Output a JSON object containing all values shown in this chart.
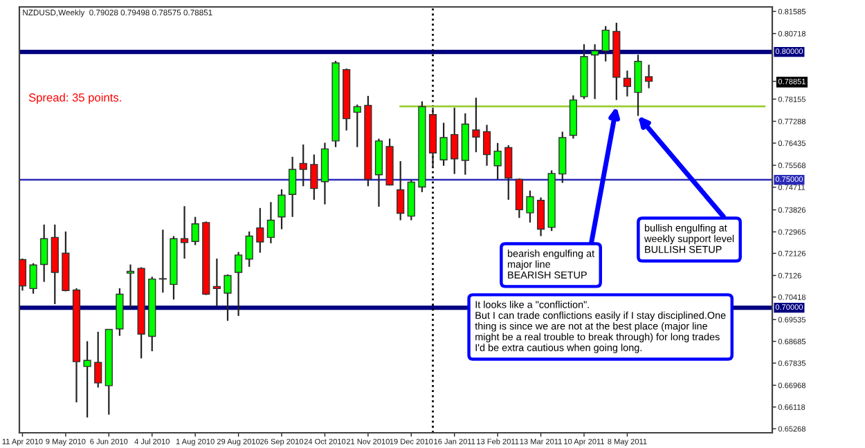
{
  "chart_data": {
    "type": "candlestick",
    "title": "NZDUSD,Weekly  0.79028 0.79498 0.78575 0.78851",
    "x": [
      "2010-04-11",
      "2010-04-18",
      "2010-04-25",
      "2010-05-02",
      "2010-05-09",
      "2010-05-16",
      "2010-05-23",
      "2010-05-30",
      "2010-06-06",
      "2010-06-13",
      "2010-06-20",
      "2010-06-27",
      "2010-07-04",
      "2010-07-11",
      "2010-07-18",
      "2010-07-25",
      "2010-08-01",
      "2010-08-08",
      "2010-08-15",
      "2010-08-22",
      "2010-08-29",
      "2010-09-05",
      "2010-09-12",
      "2010-09-19",
      "2010-09-26",
      "2010-10-03",
      "2010-10-10",
      "2010-10-17",
      "2010-10-24",
      "2010-10-31",
      "2010-11-07",
      "2010-11-14",
      "2010-11-21",
      "2010-11-28",
      "2010-12-05",
      "2010-12-12",
      "2010-12-19",
      "2010-12-26",
      "2011-01-02",
      "2011-01-09",
      "2011-01-16",
      "2011-01-23",
      "2011-01-30",
      "2011-02-06",
      "2011-02-13",
      "2011-02-20",
      "2011-02-27",
      "2011-03-06",
      "2011-03-13",
      "2011-03-20",
      "2011-03-27",
      "2011-04-03",
      "2011-04-10",
      "2011-04-17",
      "2011-04-24",
      "2011-05-01",
      "2011-05-08",
      "2011-05-15",
      "2011-05-22"
    ],
    "ohlc": [
      [
        0.7188,
        0.7192,
        0.7067,
        0.7085
      ],
      [
        0.7075,
        0.7174,
        0.7055,
        0.7167
      ],
      [
        0.7169,
        0.7325,
        0.7101,
        0.727
      ],
      [
        0.7275,
        0.7325,
        0.7014,
        0.7138
      ],
      [
        0.7213,
        0.7298,
        0.7064,
        0.7067
      ],
      [
        0.7069,
        0.7076,
        0.663,
        0.6789
      ],
      [
        0.677,
        0.6869,
        0.6571,
        0.6794
      ],
      [
        0.6786,
        0.6906,
        0.6688,
        0.6706
      ],
      [
        0.6695,
        0.6915,
        0.6582,
        0.6915
      ],
      [
        0.6917,
        0.7076,
        0.689,
        0.7053
      ],
      [
        0.7135,
        0.7169,
        0.6997,
        0.7142
      ],
      [
        0.7154,
        0.7158,
        0.6802,
        0.6897
      ],
      [
        0.6888,
        0.7121,
        0.683,
        0.7112
      ],
      [
        0.7112,
        0.7305,
        0.7059,
        0.7112
      ],
      [
        0.7091,
        0.728,
        0.7032,
        0.727
      ],
      [
        0.727,
        0.7397,
        0.7192,
        0.7255
      ],
      [
        0.7259,
        0.7355,
        0.7245,
        0.7328
      ],
      [
        0.7333,
        0.7337,
        0.705,
        0.7053
      ],
      [
        0.7083,
        0.7192,
        0.7005,
        0.7075
      ],
      [
        0.7057,
        0.713,
        0.6949,
        0.7126
      ],
      [
        0.7138,
        0.7218,
        0.6968,
        0.7206
      ],
      [
        0.719,
        0.7298,
        0.716,
        0.728
      ],
      [
        0.7312,
        0.739,
        0.7215,
        0.7257
      ],
      [
        0.7275,
        0.7413,
        0.7252,
        0.7342
      ],
      [
        0.7355,
        0.7463,
        0.7307,
        0.744
      ],
      [
        0.7443,
        0.759,
        0.7355,
        0.7541
      ],
      [
        0.7564,
        0.7638,
        0.7475,
        0.7541
      ],
      [
        0.756,
        0.7599,
        0.7422,
        0.7466
      ],
      [
        0.7493,
        0.7645,
        0.7404,
        0.7621
      ],
      [
        0.7652,
        0.7965,
        0.7628,
        0.7957
      ],
      [
        0.7931,
        0.7935,
        0.7693,
        0.7739
      ],
      [
        0.7764,
        0.7794,
        0.7628,
        0.7786
      ],
      [
        0.7791,
        0.7828,
        0.7475,
        0.7502
      ],
      [
        0.752,
        0.7661,
        0.7395,
        0.7652
      ],
      [
        0.763,
        0.7661,
        0.7478,
        0.748
      ],
      [
        0.7461,
        0.7573,
        0.7342,
        0.7369
      ],
      [
        0.7358,
        0.75,
        0.7342,
        0.7491
      ],
      [
        0.7472,
        0.7807,
        0.7452,
        0.7786
      ],
      [
        0.7755,
        0.7782,
        0.7546,
        0.7605
      ],
      [
        0.7578,
        0.7723,
        0.7555,
        0.7665
      ],
      [
        0.7677,
        0.7782,
        0.7523,
        0.7582
      ],
      [
        0.7576,
        0.776,
        0.752,
        0.7718
      ],
      [
        0.7695,
        0.7821,
        0.7608,
        0.7667
      ],
      [
        0.7688,
        0.7715,
        0.7555,
        0.7599
      ],
      [
        0.7555,
        0.7644,
        0.7502,
        0.7612
      ],
      [
        0.7626,
        0.7635,
        0.7422,
        0.7507
      ],
      [
        0.7502,
        0.7505,
        0.7351,
        0.7383
      ],
      [
        0.7371,
        0.7458,
        0.7333,
        0.7434
      ],
      [
        0.742,
        0.7431,
        0.728,
        0.7307
      ],
      [
        0.7314,
        0.7537,
        0.73,
        0.7525
      ],
      [
        0.7523,
        0.7688,
        0.7488,
        0.7665
      ],
      [
        0.7674,
        0.783,
        0.7661,
        0.7812
      ],
      [
        0.7825,
        0.803,
        0.7816,
        0.7982
      ],
      [
        0.7988,
        0.803,
        0.7816,
        0.8004
      ],
      [
        0.8004,
        0.8101,
        0.7963,
        0.8085
      ],
      [
        0.808,
        0.8114,
        0.7812,
        0.7901
      ],
      [
        0.7897,
        0.7927,
        0.7826,
        0.7865
      ],
      [
        0.7842,
        0.7989,
        0.775,
        0.7963
      ],
      [
        0.7903,
        0.795,
        0.7858,
        0.7885
      ]
    ],
    "colors": [
      "#ff0000",
      "#00ff00",
      "#00ff00",
      "#ff0000",
      "#ff0000",
      "#ff0000",
      "#00ff00",
      "#ff0000",
      "#00ff00",
      "#00ff00",
      "#00ff00",
      "#ff0000",
      "#00ff00",
      "#00ff00",
      "#00ff00",
      "#ff0000",
      "#00ff00",
      "#ff0000",
      "#ff0000",
      "#00ff00",
      "#00ff00",
      "#00ff00",
      "#ff0000",
      "#00ff00",
      "#00ff00",
      "#00ff00",
      "#ff0000",
      "#ff0000",
      "#00ff00",
      "#00ff00",
      "#ff0000",
      "#00ff00",
      "#ff0000",
      "#00ff00",
      "#ff0000",
      "#ff0000",
      "#00ff00",
      "#00ff00",
      "#ff0000",
      "#00ff00",
      "#ff0000",
      "#00ff00",
      "#ff0000",
      "#ff0000",
      "#00ff00",
      "#ff0000",
      "#ff0000",
      "#00ff00",
      "#ff0000",
      "#00ff00",
      "#00ff00",
      "#00ff00",
      "#00ff00",
      "#00ff00",
      "#00ff00",
      "#ff0000",
      "#ff0000",
      "#00ff00",
      "#ff0000"
    ],
    "series": [
      {
        "type": "line",
        "x": [
          "2010-12-12",
          "2011-08-05"
        ],
        "values": [
          0.7787,
          0.7787
        ],
        "color": "#9acd32"
      }
    ],
    "xlim": [
      "2010-04-09",
      "2011-08-10"
    ],
    "xticks": [
      {
        "value": "2010-04-11",
        "label": "11 Apr 2010"
      },
      {
        "value": "2010-05-09",
        "label": "9 May 2010"
      },
      {
        "value": "2010-06-06",
        "label": "6 Jun 2010"
      },
      {
        "value": "2010-07-04",
        "label": "4 Jul 2010"
      },
      {
        "value": "2010-08-01",
        "label": "1 Aug 2010"
      },
      {
        "value": "2010-08-29",
        "label": "29 Aug 2010"
      },
      {
        "value": "2010-09-26",
        "label": "26 Sep 2010"
      },
      {
        "value": "2010-10-24",
        "label": "24 Oct 2010"
      },
      {
        "value": "2010-11-21",
        "label": "21 Nov 2010"
      },
      {
        "value": "2010-12-19",
        "label": "19 Dec 2010"
      },
      {
        "value": "2011-01-16",
        "label": "16 Jan 2011"
      },
      {
        "value": "2011-02-13",
        "label": "13 Feb 2011"
      },
      {
        "value": "2011-03-13",
        "label": "13 Mar 2011"
      },
      {
        "value": "2011-04-10",
        "label": "10 Apr 2011"
      },
      {
        "value": "2011-05-08",
        "label": "8 May 2011"
      }
    ],
    "ylim": [
      0.6511,
      0.8176
    ],
    "yticks": [
      0.65268,
      0.66118,
      0.66968,
      0.67835,
      0.68685,
      0.69535,
      0.70418,
      0.7126,
      0.72126,
      0.72965,
      0.73826,
      0.74711,
      0.75568,
      0.76435,
      0.77288,
      0.78155,
      {
        "value": 0.78851,
        "label": "0.78851"
      },
      0.80718,
      0.81585
    ],
    "ref_lines": [
      {
        "axis": "y",
        "value": 0.8,
        "label": "0.80000",
        "color": "#000080"
      },
      {
        "axis": "y",
        "value": 0.75,
        "label": "0.75000",
        "color": "#2a2ab8"
      },
      {
        "axis": "y",
        "value": 0.7,
        "label": "0.70000",
        "color": "#000080"
      },
      {
        "axis": "x",
        "value": "2011-01-02",
        "color": "#000000",
        "line_style": "dotted"
      }
    ],
    "annotations": [
      "Spread: 35 points.",
      {
        "text": "bearish engulfing at\nmajor line\nBEARISH SETUP",
        "x": "2011-05-01",
        "y": 0.7787
      },
      {
        "text": "bullish engulfing at\nweekly support level\nBULLISH SETUP",
        "x": "2011-05-15",
        "y": 0.775
      },
      "It looks like a \"confliction\".\nBut I can trade conflictions easily if I stay disciplined.One\nthing is since we are not at the best place (major line\nmight be a real trouble to break through) for long trades\nI'd be extra cautious when going long."
    ],
    "grid": false
  }
}
